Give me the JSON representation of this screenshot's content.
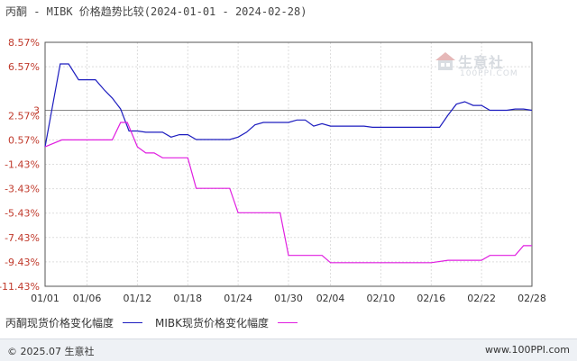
{
  "chart_data": {
    "type": "line",
    "title": "丙酮 - MIBK 价格趋势比较(2024-01-01 - 2024-02-28)",
    "y_ticks": [
      "8.57%",
      "6.57%",
      "3",
      "2.57%",
      "0.57%",
      "-1.43%",
      "-3.43%",
      "-5.43%",
      "-7.43%",
      "-9.43%",
      "-11.43%"
    ],
    "y_tick_values": [
      8.57,
      6.57,
      3,
      2.57,
      0.57,
      -1.43,
      -3.43,
      -5.43,
      -7.43,
      -9.43,
      -11.43
    ],
    "ylim": [
      -11.43,
      8.57
    ],
    "x_ticks": [
      "01/01",
      "01/06",
      "01/12",
      "01/18",
      "01/24",
      "01/30",
      "02/04",
      "02/10",
      "02/16",
      "02/22",
      "02/28"
    ],
    "x_tick_values": [
      0,
      5,
      11,
      17,
      23,
      29,
      34,
      40,
      46,
      52,
      58
    ],
    "xlim": [
      0,
      58
    ],
    "reference_line": 3,
    "grid": true,
    "legend_position": "bottom-left",
    "series": [
      {
        "name": "丙酮现货价格变化幅度",
        "color": "#1d1dbf",
        "points": [
          [
            0,
            0
          ],
          [
            1.8,
            6.8
          ],
          [
            2.8,
            6.8
          ],
          [
            4,
            5.5
          ],
          [
            5,
            5.5
          ],
          [
            6,
            5.5
          ],
          [
            7,
            4.7
          ],
          [
            8,
            4
          ],
          [
            9,
            3.1
          ],
          [
            10,
            1.3
          ],
          [
            11,
            1.3
          ],
          [
            12,
            1.2
          ],
          [
            13,
            1.2
          ],
          [
            14,
            1.2
          ],
          [
            15,
            0.8
          ],
          [
            16,
            1
          ],
          [
            17,
            1
          ],
          [
            18,
            0.6
          ],
          [
            19,
            0.6
          ],
          [
            20,
            0.6
          ],
          [
            21,
            0.6
          ],
          [
            22,
            0.6
          ],
          [
            23,
            0.8
          ],
          [
            24,
            1.2
          ],
          [
            25,
            1.8
          ],
          [
            26,
            2
          ],
          [
            27,
            2
          ],
          [
            28,
            2
          ],
          [
            29,
            2
          ],
          [
            30,
            2.2
          ],
          [
            31,
            2.2
          ],
          [
            32,
            1.7
          ],
          [
            33,
            1.9
          ],
          [
            34,
            1.7
          ],
          [
            35,
            1.7
          ],
          [
            36,
            1.7
          ],
          [
            37,
            1.7
          ],
          [
            38,
            1.7
          ],
          [
            39,
            1.6
          ],
          [
            40,
            1.6
          ],
          [
            41,
            1.6
          ],
          [
            42,
            1.6
          ],
          [
            43,
            1.6
          ],
          [
            44,
            1.6
          ],
          [
            45,
            1.6
          ],
          [
            46,
            1.6
          ],
          [
            47,
            1.6
          ],
          [
            48,
            2.6
          ],
          [
            49,
            3.5
          ],
          [
            50,
            3.7
          ],
          [
            51,
            3.4
          ],
          [
            52,
            3.4
          ],
          [
            53,
            3
          ],
          [
            54,
            3
          ],
          [
            55,
            3
          ],
          [
            56,
            3.1
          ],
          [
            57,
            3.1
          ],
          [
            58,
            3
          ]
        ]
      },
      {
        "name": "MIBK现货价格变化幅度",
        "color": "#e01ee0",
        "points": [
          [
            0,
            0
          ],
          [
            2,
            0.57
          ],
          [
            8,
            0.57
          ],
          [
            9,
            2
          ],
          [
            9.8,
            2
          ],
          [
            11,
            0
          ],
          [
            12,
            -0.5
          ],
          [
            13,
            -0.5
          ],
          [
            14,
            -0.9
          ],
          [
            17,
            -0.9
          ],
          [
            18,
            -3.4
          ],
          [
            22,
            -3.4
          ],
          [
            23,
            -5.4
          ],
          [
            28,
            -5.4
          ],
          [
            29,
            -8.9
          ],
          [
            33,
            -8.9
          ],
          [
            34,
            -9.5
          ],
          [
            46,
            -9.5
          ],
          [
            48,
            -9.3
          ],
          [
            52,
            -9.3
          ],
          [
            53,
            -8.9
          ],
          [
            56,
            -8.9
          ],
          [
            57,
            -8.1
          ],
          [
            58,
            -8.1
          ]
        ]
      }
    ]
  },
  "watermark": {
    "name": "生意社",
    "url": "100PPI.COM"
  },
  "footer": {
    "copyright": "© 2025.07 生意社",
    "site": "www.100PPI.com"
  },
  "colors": {
    "axis": "#555555",
    "grid": "#dddddd",
    "reference": "#888888"
  }
}
